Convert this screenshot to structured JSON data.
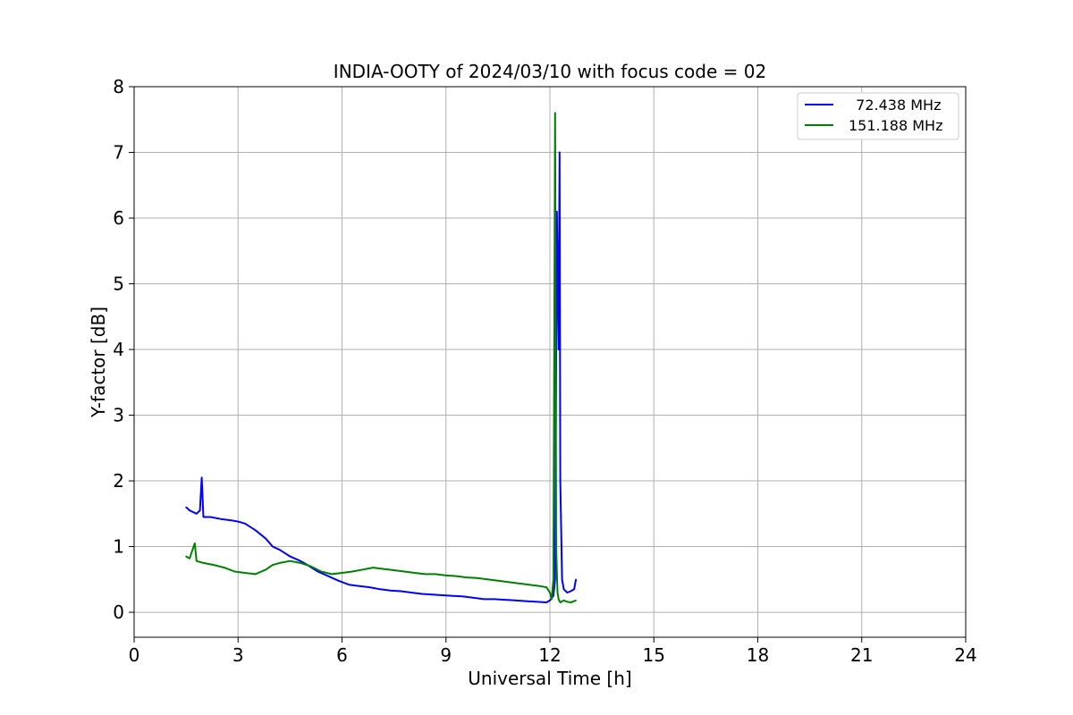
{
  "chart_data": {
    "type": "line",
    "title": "INDIA-OOTY of 2024/03/10 with focus code = 02",
    "xlabel": "Universal Time [h]",
    "ylabel": "Y-factor [dB]",
    "xlim": [
      0,
      24
    ],
    "ylim": [
      -0.38,
      8
    ],
    "xticks": [
      0,
      3,
      6,
      9,
      12,
      15,
      18,
      21,
      24
    ],
    "xtick_labels": [
      "0",
      "3",
      "6",
      "9",
      "12",
      "15",
      "18",
      "21",
      "24"
    ],
    "yticks": [
      0,
      1,
      2,
      3,
      4,
      5,
      6,
      7,
      8
    ],
    "ytick_labels": [
      "0",
      "1",
      "2",
      "3",
      "4",
      "5",
      "6",
      "7",
      "8"
    ],
    "grid": true,
    "legend_position": "top-right",
    "series": [
      {
        "name": "72.438 MHz",
        "legend_label": "  72.438 MHz",
        "color": "#0000ff",
        "x": [
          1.5,
          1.6,
          1.8,
          1.9,
          1.95,
          2.0,
          2.2,
          2.5,
          2.8,
          3.0,
          3.2,
          3.5,
          3.8,
          4.0,
          4.2,
          4.5,
          4.8,
          5.0,
          5.3,
          5.6,
          5.9,
          6.2,
          6.5,
          6.8,
          7.1,
          7.4,
          7.7,
          8.0,
          8.3,
          8.6,
          8.9,
          9.2,
          9.5,
          9.8,
          10.1,
          10.4,
          10.7,
          11.0,
          11.3,
          11.6,
          11.9,
          12.0,
          12.1,
          12.15,
          12.2,
          12.25,
          12.28,
          12.3,
          12.35,
          12.4,
          12.5,
          12.6,
          12.7,
          12.75
        ],
        "y": [
          1.6,
          1.55,
          1.5,
          1.55,
          2.05,
          1.45,
          1.45,
          1.42,
          1.4,
          1.38,
          1.35,
          1.25,
          1.12,
          1.0,
          0.95,
          0.85,
          0.78,
          0.72,
          0.62,
          0.55,
          0.48,
          0.42,
          0.4,
          0.38,
          0.35,
          0.33,
          0.32,
          0.3,
          0.28,
          0.27,
          0.26,
          0.25,
          0.24,
          0.22,
          0.2,
          0.2,
          0.19,
          0.18,
          0.17,
          0.16,
          0.15,
          0.18,
          0.25,
          0.5,
          6.1,
          4.0,
          7.0,
          2.0,
          0.5,
          0.35,
          0.3,
          0.32,
          0.35,
          0.5
        ]
      },
      {
        "name": "151.188 MHz",
        "legend_label": "151.188 MHz",
        "color": "#008000",
        "x": [
          1.5,
          1.6,
          1.75,
          1.8,
          2.0,
          2.3,
          2.6,
          2.9,
          3.2,
          3.5,
          3.8,
          4.0,
          4.2,
          4.5,
          4.8,
          5.1,
          5.4,
          5.7,
          6.0,
          6.3,
          6.6,
          6.9,
          7.2,
          7.5,
          7.8,
          8.1,
          8.4,
          8.7,
          9.0,
          9.3,
          9.6,
          9.9,
          10.2,
          10.5,
          10.8,
          11.1,
          11.4,
          11.7,
          11.9,
          12.0,
          12.05,
          12.1,
          12.15,
          12.18,
          12.2,
          12.22,
          12.25,
          12.3,
          12.4,
          12.5,
          12.6,
          12.7,
          12.75
        ],
        "y": [
          0.85,
          0.82,
          1.05,
          0.78,
          0.75,
          0.72,
          0.68,
          0.62,
          0.6,
          0.58,
          0.65,
          0.72,
          0.75,
          0.78,
          0.75,
          0.7,
          0.62,
          0.58,
          0.6,
          0.62,
          0.65,
          0.68,
          0.66,
          0.64,
          0.62,
          0.6,
          0.58,
          0.58,
          0.56,
          0.55,
          0.53,
          0.52,
          0.5,
          0.48,
          0.46,
          0.44,
          0.42,
          0.4,
          0.38,
          0.3,
          0.2,
          0.5,
          7.6,
          1.0,
          0.6,
          0.3,
          0.2,
          0.15,
          0.18,
          0.16,
          0.15,
          0.17,
          0.18
        ]
      }
    ]
  }
}
